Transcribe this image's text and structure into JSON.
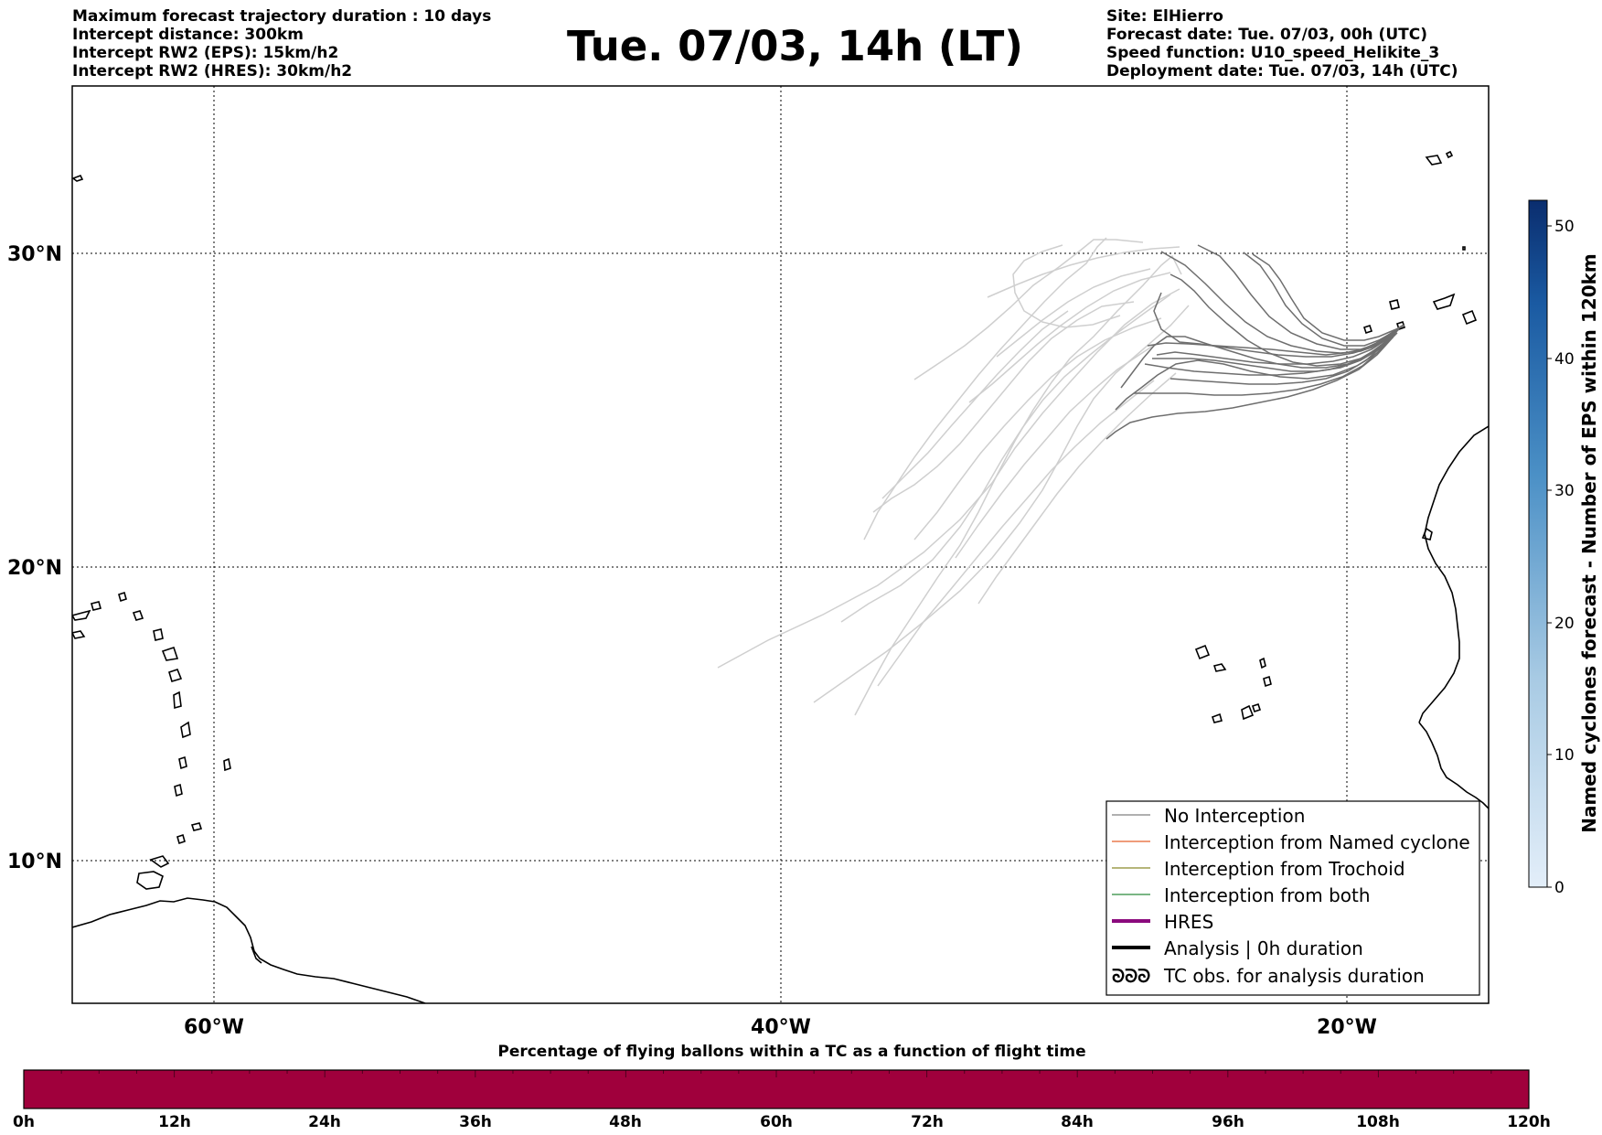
{
  "header": {
    "title": "Tue. 07/03, 14h (LT)",
    "left_lines": [
      "Maximum forecast trajectory duration : 10 days",
      "Intercept distance: 300km",
      "Intercept RW2 (EPS):  15km/h2",
      "Intercept RW2 (HRES): 30km/h2"
    ],
    "right_lines": [
      "Site: ElHierro",
      "Forecast date: Tue. 07/03, 00h (UTC)",
      "Speed function: U10_speed_Helikite_3",
      "Deployment date: Tue. 07/03, 14h (UTC)"
    ]
  },
  "map": {
    "lon_ticks": [
      "60°W",
      "40°W",
      "20°W"
    ],
    "lat_ticks": [
      "30°N",
      "20°N",
      "10°N"
    ]
  },
  "legend": {
    "items": [
      {
        "label": "No Interception",
        "color": "#808080"
      },
      {
        "label": "Interception from Named cyclone",
        "color": "#e5622b"
      },
      {
        "label": "Interception from Trochoid",
        "color": "#8b8b2a"
      },
      {
        "label": "Interception from both",
        "color": "#2a8b3a"
      },
      {
        "label": "HRES",
        "color": "#8b0a7d"
      },
      {
        "label": "Analysis | 0h duration",
        "color": "#000000"
      },
      {
        "label": "TC obs. for analysis duration",
        "color": "#000000"
      }
    ],
    "tc_symbol": "ᘐᘐᘐ"
  },
  "colorbar": {
    "title": "Named cyclones forecast - Number of EPS within 120km",
    "ticks": [
      "0",
      "10",
      "20",
      "30",
      "40",
      "50"
    ],
    "color_low": "#e3eef9",
    "color_high": "#0a2d6e"
  },
  "timebar": {
    "title": "Percentage of flying ballons within a TC as a function of flight time",
    "ticks": [
      "0h",
      "12h",
      "24h",
      "36h",
      "48h",
      "60h",
      "72h",
      "84h",
      "96h",
      "108h",
      "120h"
    ],
    "fill_color": "#a0003c"
  }
}
